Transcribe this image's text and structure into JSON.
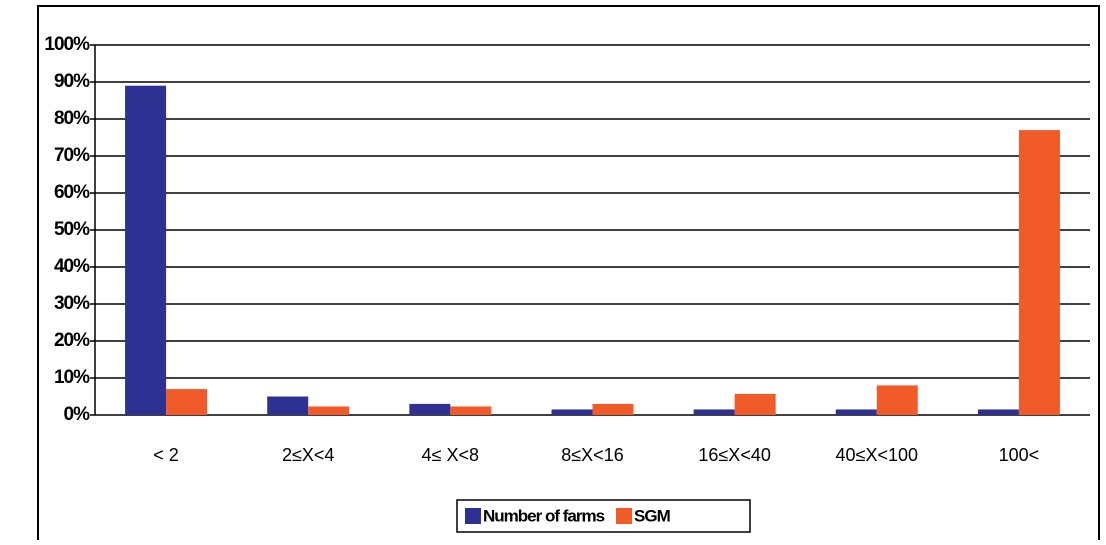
{
  "chart_data": {
    "type": "bar",
    "categories": [
      "< 2",
      "2≤X<4",
      "4≤ X<8",
      "8≤X<16",
      "16≤X<40",
      "40≤X<100",
      "100<"
    ],
    "series": [
      {
        "name": "Number of farms",
        "color": "#2e3192",
        "values": [
          89,
          5,
          3,
          1.5,
          1.5,
          1.5,
          1.5
        ]
      },
      {
        "name": "SGM",
        "color": "#f15a29",
        "values": [
          7,
          2.3,
          2.3,
          3,
          5.7,
          8,
          77
        ]
      }
    ],
    "ylim": [
      0,
      100
    ],
    "yticks": [
      {
        "value": 0,
        "label": "0%"
      },
      {
        "value": 10,
        "label": "10%"
      },
      {
        "value": 20,
        "label": "20%"
      },
      {
        "value": 30,
        "label": "30%"
      },
      {
        "value": 40,
        "label": "40%"
      },
      {
        "value": 50,
        "label": "50%"
      },
      {
        "value": 60,
        "label": "60%"
      },
      {
        "value": 70,
        "label": "70%"
      },
      {
        "value": 80,
        "label": "80%"
      },
      {
        "value": 90,
        "label": "90%"
      },
      {
        "value": 100,
        "label": "100%"
      }
    ],
    "grid": true
  }
}
